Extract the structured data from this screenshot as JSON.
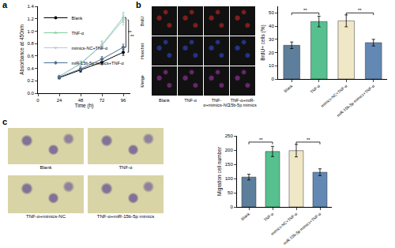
{
  "panel_labels": [
    "a",
    "b",
    "c"
  ],
  "image_panels": {
    "b": {
      "rows": [
        "BrdU",
        "Hoechst",
        "Merge"
      ],
      "columns": [
        "Blank",
        "TNF-α",
        "TNF-α+mimics-NC",
        "TNF-α+miR-15b-5p mimics"
      ]
    },
    "c": {
      "images": [
        "Blank",
        "TNF-α",
        "TNF-α+mimics-NC",
        "TNF-α+miR-15b-5p mimics"
      ]
    }
  },
  "chart_data": [
    {
      "type": "line",
      "x": [
        24,
        48,
        72,
        96
      ],
      "x_label": "Time (h)",
      "y_label": "Absorbance at 450nm",
      "xlim": [
        0,
        104
      ],
      "xticks": [
        0,
        24,
        48,
        72,
        96
      ],
      "ylim": [
        0,
        1.4
      ],
      "yticks": [
        {
          "value": 0,
          "label": "0.0"
        },
        0.2,
        0.4,
        0.6,
        0.8,
        {
          "value": 1,
          "label": "1.0"
        },
        1.2,
        1.4
      ],
      "grid": false,
      "legend": "upper left",
      "series": [
        {
          "name": "Blank",
          "color": "#000000",
          "marker": "circle",
          "values": [
            0.25,
            0.37,
            0.5,
            0.66
          ],
          "errors": [
            0.02,
            0.03,
            0.04,
            0.05
          ]
        },
        {
          "name": "TNF-α",
          "color": "#7ccf9a",
          "marker": "triangle-up",
          "values": [
            0.27,
            0.48,
            0.78,
            1.22
          ],
          "errors": [
            0.02,
            0.04,
            0.06,
            0.08
          ]
        },
        {
          "name": "mimics-NC+TNF-α",
          "color": "#b9c6d8",
          "marker": "triangle-down",
          "values": [
            0.27,
            0.47,
            0.77,
            1.18
          ],
          "errors": [
            0.02,
            0.04,
            0.06,
            0.08
          ]
        },
        {
          "name": "miR-15b-5p mimics+TNF-α",
          "color": "#4f6f8f",
          "marker": "diamond",
          "values": [
            0.26,
            0.39,
            0.55,
            0.74
          ],
          "errors": [
            0.02,
            0.03,
            0.04,
            0.05
          ]
        }
      ],
      "annotations": [
        {
          "text": "**",
          "x": 99,
          "y0": 0.74,
          "y1": 1.22
        },
        {
          "text": "**",
          "x": 102,
          "y0": 0.66,
          "y1": 1.18
        }
      ]
    },
    {
      "type": "bar",
      "categories": [
        "Blank",
        "TNF-α",
        "mimics-NC+TNF-α",
        "miR-15b-5p mimics+TNF-α"
      ],
      "values": [
        25.5,
        43.5,
        44,
        27.5
      ],
      "errors": [
        2.5,
        4,
        4.5,
        2.5
      ],
      "colors": [
        "#5d7f9c",
        "#56c08f",
        "#efe7c6",
        "#6288b3"
      ],
      "y_label": "BrdU+ cells (%)",
      "ylim": [
        0,
        55
      ],
      "yticks": [
        0,
        10,
        20,
        30,
        40,
        50
      ],
      "grid": false,
      "annotations": [
        {
          "text": "**",
          "x0": 0,
          "x1": 1,
          "y": 50
        },
        {
          "text": "**",
          "x0": 2,
          "x1": 3,
          "y": 50
        }
      ]
    },
    {
      "type": "bar",
      "categories": [
        "Blank",
        "TNF-α",
        "mimics-NC+TNF-α",
        "miR-15b-5p mimics+TNF-α"
      ],
      "values": [
        105,
        195,
        198,
        122
      ],
      "errors": [
        10,
        18,
        22,
        12
      ],
      "colors": [
        "#5d7f9c",
        "#56c08f",
        "#efe7c6",
        "#6288b3"
      ],
      "y_label": "Migration cell number",
      "ylim": [
        0,
        250
      ],
      "yticks": [
        0,
        50,
        100,
        150,
        200,
        250
      ],
      "grid": false,
      "annotations": [
        {
          "text": "**",
          "x0": 0,
          "x1": 1,
          "y": 228
        },
        {
          "text": "**",
          "x0": 2,
          "x1": 3,
          "y": 228
        }
      ]
    }
  ]
}
